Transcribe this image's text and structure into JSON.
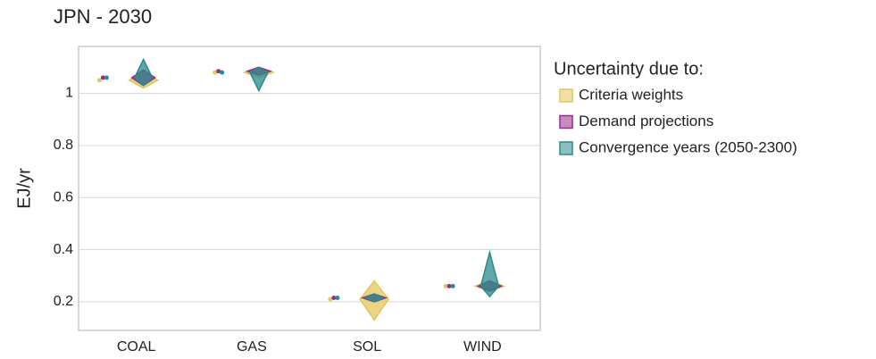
{
  "chart_data": {
    "type": "violin",
    "title": "JPN - 2030",
    "y_label": "EJ/yr",
    "legend_title": "Uncertainty due to:",
    "categories": [
      "COAL",
      "GAS",
      "SOL",
      "WIND"
    ],
    "series": [
      {
        "name": "Criteria weights",
        "color": "#e3c75a",
        "low": [
          1.02,
          1.06,
          0.13,
          0.24
        ],
        "values": [
          1.05,
          1.08,
          0.21,
          0.26
        ],
        "high": [
          1.08,
          1.1,
          0.28,
          0.28
        ]
      },
      {
        "name": "Demand projections",
        "color": "#9b2a8f",
        "low": [
          1.03,
          1.07,
          0.2,
          0.24
        ],
        "values": [
          1.06,
          1.085,
          0.215,
          0.26
        ],
        "high": [
          1.09,
          1.1,
          0.23,
          0.28
        ]
      },
      {
        "name": "Convergence years (2050-2300)",
        "color": "#2a8a8c",
        "low": [
          1.03,
          1.01,
          0.2,
          0.22
        ],
        "values": [
          1.06,
          1.08,
          0.215,
          0.26
        ],
        "high": [
          1.13,
          1.1,
          0.23,
          0.39
        ]
      }
    ],
    "ylim": [
      0.09,
      1.18
    ],
    "yticks": [
      0.2,
      0.4,
      0.6,
      0.8,
      1
    ],
    "grid": true
  }
}
